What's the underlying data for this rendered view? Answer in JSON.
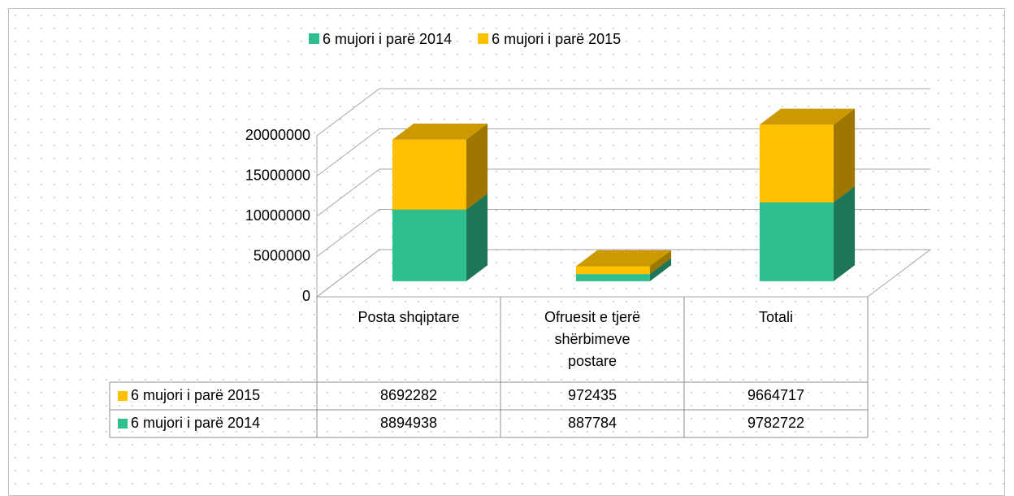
{
  "chart_data": {
    "type": "bar3d_stacked",
    "categories": [
      "Posta shqiptare",
      "Ofruesit e tjerë shërbimeve postare",
      "Totali"
    ],
    "series": [
      {
        "name": "6 mujori i parë 2014",
        "color": "#2dbf8d",
        "values": [
          8894938,
          887784,
          9782722
        ]
      },
      {
        "name": "6 mujori i parë 2015",
        "color": "#ffc000",
        "values": [
          8692282,
          972435,
          9664717
        ]
      }
    ],
    "ylim": [
      0,
      20000000
    ],
    "yticks": [
      0,
      5000000,
      10000000,
      15000000,
      20000000
    ],
    "grid": true,
    "legend": "top",
    "data_table": true
  }
}
